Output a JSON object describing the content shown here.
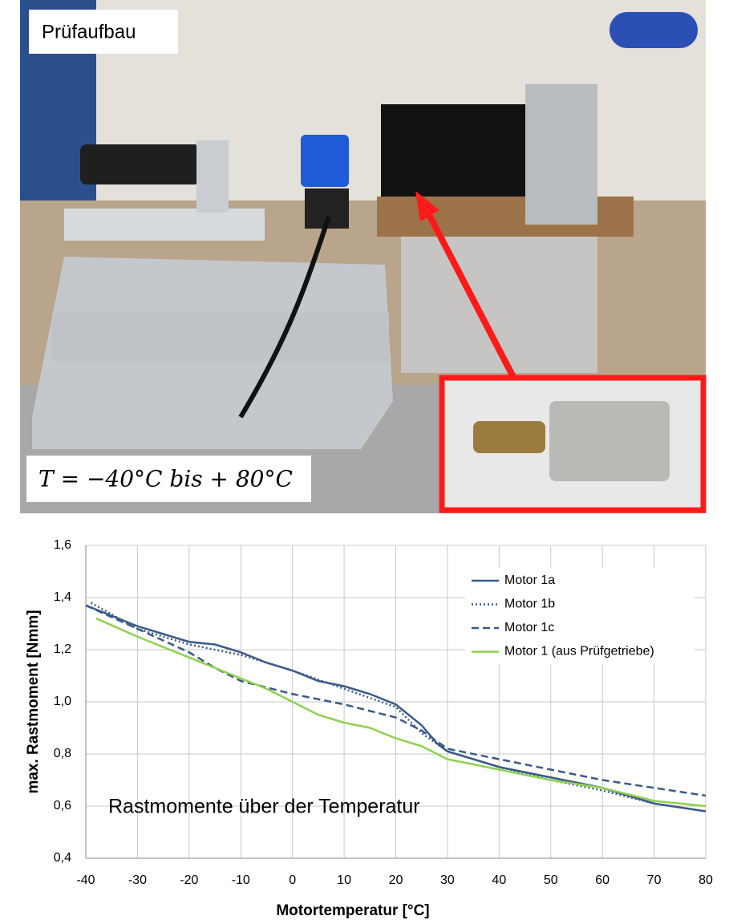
{
  "photo": {
    "label": "Prüfaufbau",
    "formula": "T = −40°C bis + 80°C"
  },
  "chart_data": {
    "type": "line",
    "annotation": "Rastmomente über der Temperatur",
    "xlabel": "Motortemperatur [°C]",
    "ylabel": "max. Rastmoment [Nmm]",
    "xlim": [
      -40,
      80
    ],
    "xticks": [
      -40,
      -30,
      -20,
      -10,
      0,
      10,
      20,
      30,
      40,
      50,
      60,
      70,
      80
    ],
    "ylim": [
      0.4,
      1.6
    ],
    "yticks": [
      {
        "value": 0.4,
        "label": "0,4"
      },
      {
        "value": 0.6,
        "label": "0,6"
      },
      {
        "value": 0.8,
        "label": "0,8"
      },
      {
        "value": 1.0,
        "label": "1,0"
      },
      {
        "value": 1.2,
        "label": "1,2"
      },
      {
        "value": 1.4,
        "label": "1,4"
      },
      {
        "value": 1.6,
        "label": "1,6"
      }
    ],
    "grid": true,
    "legend": "upper right",
    "series": [
      {
        "name": "Motor 1a",
        "color": "#3b5a89",
        "style": "solid",
        "x": [
          -40,
          -30,
          -20,
          -15,
          -10,
          -5,
          0,
          5,
          10,
          15,
          20,
          25,
          28,
          30,
          40,
          50,
          60,
          70,
          80
        ],
        "values": [
          1.37,
          1.29,
          1.23,
          1.22,
          1.19,
          1.15,
          1.12,
          1.08,
          1.06,
          1.03,
          0.99,
          0.91,
          0.84,
          0.81,
          0.75,
          0.71,
          0.67,
          0.61,
          0.58
        ]
      },
      {
        "name": "Motor 1b",
        "color": "#3b5a89",
        "style": "dotted",
        "x": [
          -39,
          -30,
          -20,
          -10,
          0,
          10,
          20,
          25,
          30,
          40,
          50,
          60,
          70,
          80
        ],
        "values": [
          1.38,
          1.28,
          1.22,
          1.18,
          1.12,
          1.05,
          0.98,
          0.88,
          0.81,
          0.75,
          0.7,
          0.66,
          0.61,
          0.58
        ]
      },
      {
        "name": "Motor 1c",
        "color": "#3b5a89",
        "style": "dashed",
        "x": [
          -40,
          -30,
          -20,
          -15,
          -10,
          0,
          10,
          20,
          25,
          30,
          40,
          50,
          60,
          70,
          80
        ],
        "values": [
          1.37,
          1.28,
          1.19,
          1.13,
          1.08,
          1.03,
          0.99,
          0.94,
          0.89,
          0.82,
          0.78,
          0.74,
          0.7,
          0.67,
          0.64
        ]
      },
      {
        "name": "Motor 1 (aus Prüfgetriebe)",
        "color": "#8fd14f",
        "style": "solid",
        "x": [
          -38,
          -30,
          -20,
          -10,
          -5,
          0,
          5,
          10,
          15,
          20,
          25,
          30,
          40,
          50,
          60,
          70,
          80
        ],
        "values": [
          1.32,
          1.25,
          1.17,
          1.09,
          1.05,
          1.0,
          0.95,
          0.92,
          0.9,
          0.86,
          0.83,
          0.78,
          0.74,
          0.7,
          0.67,
          0.62,
          0.6
        ]
      }
    ]
  }
}
